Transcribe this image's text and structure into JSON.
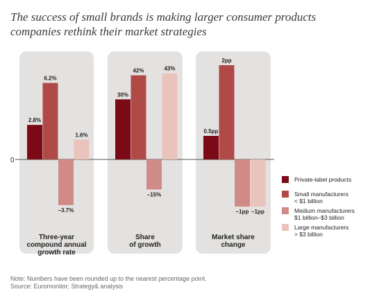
{
  "title_lines": [
    "The success of small brands is making larger consumer products",
    "companies rethink their market strategies"
  ],
  "zero_label": "0",
  "legend": [
    {
      "lines": [
        "Private-label products"
      ],
      "color": "#7b0a16"
    },
    {
      "lines": [
        "Small manufacturers",
        "< $1 billion"
      ],
      "color": "#b04a47"
    },
    {
      "lines": [
        "Medium manufacturers",
        "$1 billion–$3 billion"
      ],
      "color": "#d08a88"
    },
    {
      "lines": [
        "Large manufacturers",
        "> $3 billion"
      ],
      "color": "#ebc3bd"
    }
  ],
  "note": "Note: Numbers have been rounded up to the nearest percentage point.",
  "source": "Source: Euromonitor; Strategy& analysis",
  "colors": {
    "panel": "#e4e2e0",
    "zero_line": "#555555",
    "text": "#222222"
  },
  "chart_data": [
    {
      "type": "bar",
      "label_lines": [
        "Three-year",
        "compound annual",
        "growth rate"
      ],
      "series": [
        {
          "name": "Private-label products",
          "value": 2.8,
          "label": "2.8%"
        },
        {
          "name": "Small manufacturers < $1 billion",
          "value": 6.2,
          "label": "6.2%"
        },
        {
          "name": "Medium manufacturers $1 billion–$3 billion",
          "value": -3.7,
          "label": "–3.7%"
        },
        {
          "name": "Large manufacturers > $3 billion",
          "value": 1.6,
          "label": "1.6%"
        }
      ]
    },
    {
      "type": "bar",
      "label_lines": [
        "Share",
        "of growth"
      ],
      "series": [
        {
          "name": "Private-label products",
          "value": 30,
          "label": "30%"
        },
        {
          "name": "Small manufacturers < $1 billion",
          "value": 42,
          "label": "42%"
        },
        {
          "name": "Medium manufacturers $1 billion–$3 billion",
          "value": -15,
          "label": "–15%"
        },
        {
          "name": "Large manufacturers > $3 billion",
          "value": 43,
          "label": "43%"
        }
      ]
    },
    {
      "type": "bar",
      "label_lines": [
        "Market share",
        "change"
      ],
      "series": [
        {
          "name": "Private-label products",
          "value": 0.5,
          "label": "0.5pp"
        },
        {
          "name": "Small manufacturers < $1 billion",
          "value": 2,
          "label": "2pp"
        },
        {
          "name": "Medium manufacturers $1 billion–$3 billion",
          "value": -1,
          "label": "–1pp"
        },
        {
          "name": "Large manufacturers > $3 billion",
          "value": -1,
          "label": "–1pp"
        }
      ]
    }
  ]
}
